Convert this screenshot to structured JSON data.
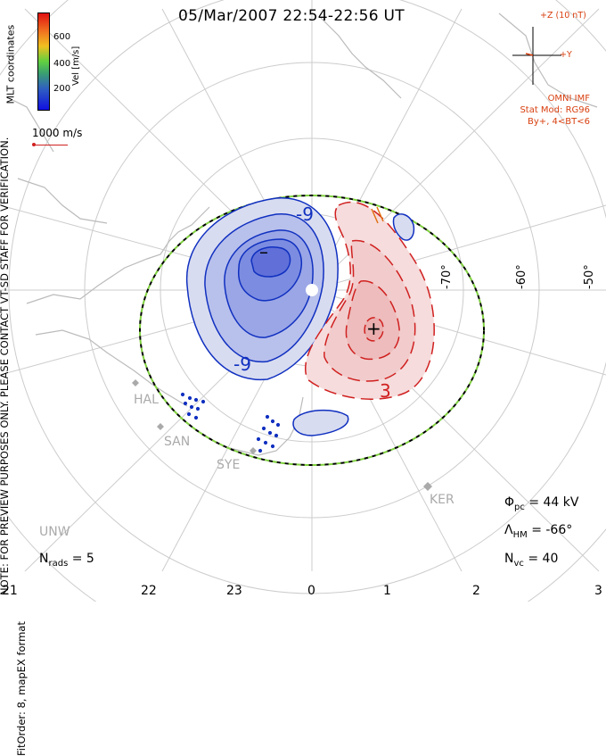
{
  "title": "05/Mar/2007 22:54-22:56 UT",
  "side_note_1": "NOTE: FOR PREVIEW PURPOSES ONLY. PLEASE CONTACT VT-SD STAFF FOR VERIFICATION.",
  "side_note_2": "FitOrder: 8, mapEX format",
  "coordinate_system": "MLT coordinates",
  "color_scale": {
    "label": "Vel [m/s]",
    "ticks": [
      "600",
      "400",
      "200"
    ],
    "colors": [
      "#e01010",
      "#f07020",
      "#f0c020",
      "#60d040",
      "#3aa070",
      "#3060c0",
      "#1010e0"
    ]
  },
  "reference_vector": "1000 m/s",
  "imf": {
    "z_label": "+Z (10 nT)",
    "y_label": "+Y",
    "source": "OMNI IMF",
    "stat_model": "Stat Mod: RG96",
    "stat_condition": "By+, 4<BT<6"
  },
  "latitude_labels": [
    "-70°",
    "-60°",
    "-50°"
  ],
  "mlt_labels": [
    "21",
    "22",
    "23",
    "0",
    "1",
    "2",
    "3"
  ],
  "stations": [
    "HAL",
    "SAN",
    "SYE",
    "KER",
    "UNW"
  ],
  "stats": {
    "n_rads_label": "N",
    "n_rads_sub": "rads",
    "n_rads_value": "= 5",
    "phi_pc_label": "Φ",
    "phi_pc_sub": "pc",
    "phi_pc_value": "= 44 kV",
    "lambda_hm_label": "Λ",
    "lambda_hm_sub": "HM",
    "lambda_hm_value": "= -66°",
    "n_vc_label": "N",
    "n_vc_sub": "vc",
    "n_vc_value": "= 40"
  },
  "contour_labels": {
    "neg_top": "-9",
    "neg_bottom": "-9",
    "pos_bottom": "3",
    "min_marker": "–",
    "max_marker": "+"
  },
  "colors": {
    "negative_cell": "#1030c0",
    "positive_cell": "#d02020",
    "boundary_green": "#80d040",
    "grid": "#cccccc",
    "coast": "#bbbbbb"
  }
}
